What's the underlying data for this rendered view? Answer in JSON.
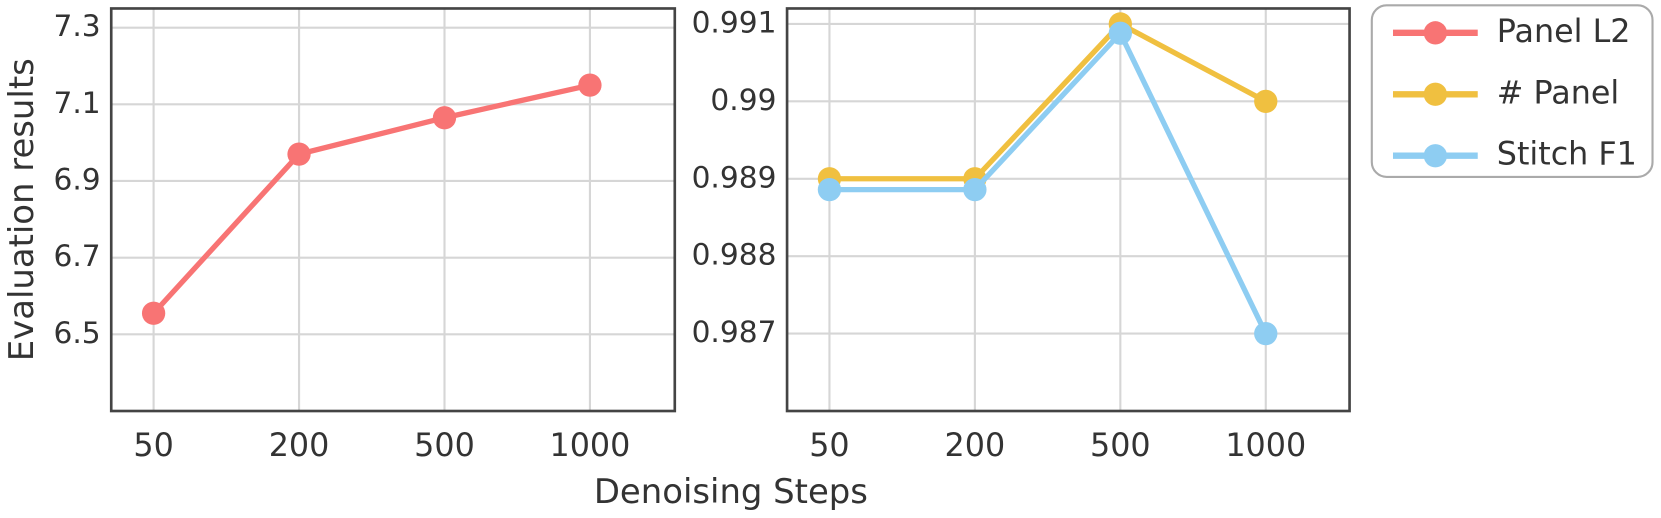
{
  "chart_data": [
    {
      "type": "line",
      "ylabel": "Evaluation results",
      "categories": [
        "50",
        "200",
        "500",
        "1000"
      ],
      "series": [
        {
          "name": "Panel L2",
          "color": "#f87474",
          "values": [
            6.555,
            6.97,
            7.065,
            7.15
          ]
        }
      ],
      "ylim": [
        6.3,
        7.35
      ],
      "yticks": [
        6.5,
        6.7,
        6.9,
        7.1,
        7.3
      ],
      "grid": true
    },
    {
      "type": "line",
      "categories": [
        "50",
        "200",
        "500",
        "1000"
      ],
      "series": [
        {
          "name": "# Panel",
          "color": "#f0c040",
          "values": [
            0.989,
            0.989,
            0.991,
            0.99
          ]
        },
        {
          "name": "Stitch F1",
          "color": "#8ecdf2",
          "values": [
            0.98886,
            0.98886,
            0.99088,
            0.987
          ]
        }
      ],
      "ylim": [
        0.986,
        0.9912
      ],
      "yticks": [
        0.987,
        0.988,
        0.989,
        0.99,
        0.991
      ],
      "grid": true
    }
  ],
  "xlabel": "Denoising Steps",
  "legend": "outside-right"
}
